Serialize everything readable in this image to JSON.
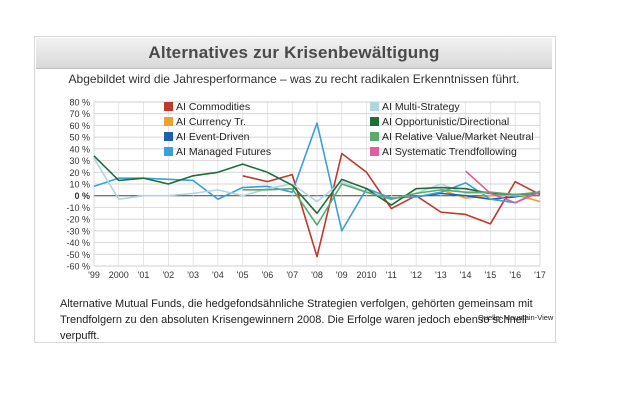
{
  "header": {
    "title": "Alternatives zur Krisenbewältigung",
    "subtitle": "Abgebildet wird die Jahresperformance – was zu recht radikalen Erkenntnissen führt."
  },
  "footer": {
    "caption": "Alternative Mutual Funds, die hedgefondsähnliche Strategien verfolgen, gehörten gemeinsam mit Trendfolgern zu den absoluten Krisengewinnern 2008. Die Erfolge waren jedoch ebenso schnell verpufft.",
    "source": "Quelle: Mountain-View"
  },
  "chart_data": {
    "type": "line",
    "title": "Alternatives zur Krisenbewältigung",
    "subtitle": "Abgebildet wird die Jahresperformance – was zu recht radikalen Erkenntnissen führt.",
    "x": [
      "'99",
      "2000",
      "'01",
      "'02",
      "'03",
      "'04",
      "'05",
      "'06",
      "'07",
      "'08",
      "'09",
      "2010",
      "'11",
      "'12",
      "'13",
      "'14",
      "'15",
      "'16",
      "'17"
    ],
    "yticks": [
      "80 %",
      "70 %",
      "60 %",
      "50 %",
      "40 %",
      "30 %",
      "20 %",
      "10 %",
      "0 %",
      "-10 %",
      "-20 %",
      "-30 %",
      "-40 %",
      "-50 %",
      "-60 %"
    ],
    "ytick_values": [
      80,
      70,
      60,
      50,
      40,
      30,
      20,
      10,
      0,
      -10,
      -20,
      -30,
      -40,
      -50,
      -60
    ],
    "ylim": [
      -60,
      80
    ],
    "grid": true,
    "legend_position": "top",
    "series": [
      {
        "name": "AI Commodities",
        "color": "#c0392b",
        "values": [
          null,
          null,
          null,
          null,
          null,
          null,
          17,
          12,
          18,
          -52,
          36,
          20,
          -11,
          0,
          -14,
          -16,
          -24,
          12,
          1
        ]
      },
      {
        "name": "AI Currency Tr.",
        "color": "#f0a030",
        "values": [
          null,
          null,
          null,
          null,
          null,
          null,
          null,
          null,
          null,
          null,
          null,
          null,
          null,
          null,
          5,
          -2,
          0,
          1,
          -5
        ]
      },
      {
        "name": "AI Event-Driven",
        "color": "#1f5fa8",
        "values": [
          null,
          null,
          null,
          null,
          null,
          null,
          null,
          null,
          null,
          null,
          null,
          null,
          null,
          -1,
          2,
          0,
          -3,
          -1,
          3
        ]
      },
      {
        "name": "AI Managed Futures",
        "color": "#3aa0d8",
        "values": [
          8,
          15,
          15,
          14,
          13,
          -3,
          7,
          8,
          3,
          62,
          -30,
          6,
          -2,
          -1,
          3,
          11,
          -3,
          -6,
          4
        ]
      },
      {
        "name": "AI Multi-Strategy",
        "color": "#b0d4e0",
        "values": [
          32,
          -3,
          0,
          0,
          2,
          5,
          0,
          6,
          10,
          -5,
          12,
          3,
          -3,
          2,
          10,
          2,
          2,
          0,
          2
        ]
      },
      {
        "name": "AI Opportunistic/Directional",
        "color": "#1e6e3a",
        "values": [
          34,
          13,
          15,
          10,
          17,
          20,
          27,
          20,
          9,
          -15,
          14,
          6,
          -8,
          6,
          7,
          6,
          2,
          1,
          2
        ]
      },
      {
        "name": "AI Relative Value/Market Neutral",
        "color": "#5aaa6e",
        "values": [
          null,
          null,
          null,
          null,
          null,
          null,
          5,
          5,
          6,
          -25,
          10,
          3,
          -3,
          2,
          5,
          3,
          3,
          1,
          3
        ]
      },
      {
        "name": "AI Systematic Trendfollowing",
        "color": "#e0609a",
        "values": [
          null,
          null,
          null,
          null,
          null,
          null,
          null,
          null,
          null,
          null,
          null,
          null,
          null,
          null,
          null,
          21,
          2,
          -6,
          3
        ]
      }
    ]
  }
}
